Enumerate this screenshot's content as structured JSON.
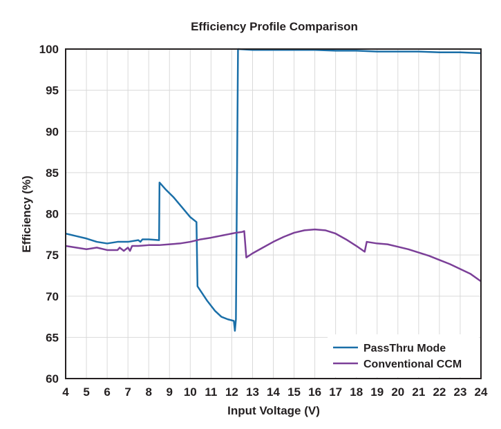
{
  "chart_data": {
    "type": "line",
    "title": "Efficiency Profile Comparison",
    "xlabel": "Input Voltage (V)",
    "ylabel": "Efficiency (%)",
    "xlim": [
      4,
      24
    ],
    "ylim": [
      60,
      100
    ],
    "x_ticks": [
      "4",
      "5",
      "6",
      "7",
      "8",
      "9",
      "10",
      "11",
      "12",
      "13",
      "14",
      "15",
      "16",
      "17",
      "18",
      "19",
      "20",
      "21",
      "22",
      "23",
      "24"
    ],
    "y_ticks": [
      "60",
      "65",
      "70",
      "75",
      "80",
      "85",
      "90",
      "95",
      "100"
    ],
    "grid": true,
    "legend_position": "bottom-right",
    "series": [
      {
        "name": "PassThru Mode",
        "color": "#1a6fa8",
        "points": [
          [
            4.0,
            77.6
          ],
          [
            4.5,
            77.3
          ],
          [
            5.0,
            77.0
          ],
          [
            5.5,
            76.6
          ],
          [
            6.0,
            76.4
          ],
          [
            6.5,
            76.6
          ],
          [
            7.0,
            76.6
          ],
          [
            7.5,
            76.8
          ],
          [
            7.6,
            76.6
          ],
          [
            7.7,
            76.9
          ],
          [
            8.0,
            76.9
          ],
          [
            8.5,
            76.8
          ],
          [
            8.52,
            83.8
          ],
          [
            8.8,
            83.0
          ],
          [
            9.2,
            82.0
          ],
          [
            9.6,
            80.8
          ],
          [
            10.0,
            79.6
          ],
          [
            10.3,
            79.0
          ],
          [
            10.35,
            71.2
          ],
          [
            10.8,
            69.5
          ],
          [
            11.2,
            68.2
          ],
          [
            11.5,
            67.5
          ],
          [
            11.8,
            67.2
          ],
          [
            12.1,
            67.0
          ],
          [
            12.15,
            65.8
          ],
          [
            12.2,
            67.2
          ],
          [
            12.3,
            100.0
          ],
          [
            13.0,
            99.9
          ],
          [
            14.0,
            99.9
          ],
          [
            15.0,
            99.9
          ],
          [
            16.0,
            99.9
          ],
          [
            17.0,
            99.8
          ],
          [
            18.0,
            99.8
          ],
          [
            19.0,
            99.7
          ],
          [
            20.0,
            99.7
          ],
          [
            21.0,
            99.7
          ],
          [
            22.0,
            99.6
          ],
          [
            23.0,
            99.6
          ],
          [
            24.0,
            99.5
          ]
        ]
      },
      {
        "name": "Conventional CCM",
        "color": "#7b3f98",
        "points": [
          [
            4.0,
            76.1
          ],
          [
            4.5,
            75.9
          ],
          [
            5.0,
            75.7
          ],
          [
            5.5,
            75.9
          ],
          [
            6.0,
            75.6
          ],
          [
            6.5,
            75.6
          ],
          [
            6.6,
            75.9
          ],
          [
            6.8,
            75.5
          ],
          [
            7.0,
            75.9
          ],
          [
            7.1,
            75.5
          ],
          [
            7.2,
            76.1
          ],
          [
            7.5,
            76.1
          ],
          [
            8.0,
            76.2
          ],
          [
            8.5,
            76.2
          ],
          [
            9.0,
            76.3
          ],
          [
            9.5,
            76.4
          ],
          [
            10.0,
            76.6
          ],
          [
            10.5,
            76.9
          ],
          [
            11.0,
            77.1
          ],
          [
            11.2,
            77.2
          ],
          [
            11.4,
            77.3
          ],
          [
            11.6,
            77.4
          ],
          [
            11.8,
            77.5
          ],
          [
            12.0,
            77.6
          ],
          [
            12.2,
            77.7
          ],
          [
            12.5,
            77.8
          ],
          [
            12.6,
            77.9
          ],
          [
            12.7,
            74.7
          ],
          [
            13.0,
            75.2
          ],
          [
            13.5,
            75.9
          ],
          [
            14.0,
            76.6
          ],
          [
            14.5,
            77.2
          ],
          [
            15.0,
            77.7
          ],
          [
            15.5,
            78.0
          ],
          [
            16.0,
            78.1
          ],
          [
            16.5,
            78.0
          ],
          [
            17.0,
            77.6
          ],
          [
            17.5,
            76.9
          ],
          [
            18.0,
            76.1
          ],
          [
            18.4,
            75.4
          ],
          [
            18.5,
            76.6
          ],
          [
            19.0,
            76.4
          ],
          [
            19.5,
            76.3
          ],
          [
            20.0,
            76.0
          ],
          [
            20.5,
            75.7
          ],
          [
            21.0,
            75.3
          ],
          [
            21.5,
            74.9
          ],
          [
            22.0,
            74.4
          ],
          [
            22.5,
            73.9
          ],
          [
            23.0,
            73.3
          ],
          [
            23.5,
            72.7
          ],
          [
            24.0,
            71.8
          ]
        ]
      }
    ]
  }
}
